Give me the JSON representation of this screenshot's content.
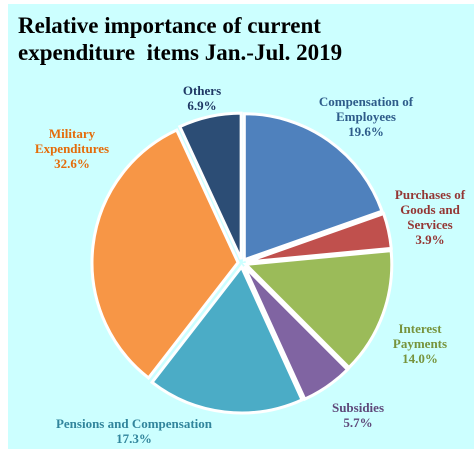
{
  "chart_data": {
    "type": "pie",
    "title_lines": [
      "Relative importance of current",
      "expenditure  items Jan.-Jul. 2019"
    ],
    "start_angle_deg": 0,
    "direction": "clockwise",
    "slices": [
      {
        "label_lines": [
          "Compensation of",
          "Employees"
        ],
        "value": 19.6,
        "value_text": "19.6%",
        "color": "#4f81bd",
        "label_color": "#2e5c8a"
      },
      {
        "label_lines": [
          "Purchases of",
          "Goods and",
          "Services"
        ],
        "value": 3.9,
        "value_text": "3.9%",
        "color": "#c0504d",
        "label_color": "#943634"
      },
      {
        "label_lines": [
          "Interest",
          "Payments"
        ],
        "value": 14.0,
        "value_text": "14.0%",
        "color": "#9bbb59",
        "label_color": "#77933c"
      },
      {
        "label_lines": [
          "Subsidies"
        ],
        "value": 5.7,
        "value_text": "5.7%",
        "color": "#8064a2",
        "label_color": "#5f497a"
      },
      {
        "label_lines": [
          "Pensions and Compensation"
        ],
        "value": 17.3,
        "value_text": "17.3%",
        "color": "#4bacc6",
        "label_color": "#31859c"
      },
      {
        "label_lines": [
          "Military",
          "Expenditures"
        ],
        "value": 32.6,
        "value_text": "32.6%",
        "color": "#f79646",
        "label_color": "#e46c0a"
      },
      {
        "label_lines": [
          "Others"
        ],
        "value": 6.9,
        "value_text": "6.9%",
        "color": "#2c4d75",
        "label_color": "#1f3864"
      }
    ]
  }
}
